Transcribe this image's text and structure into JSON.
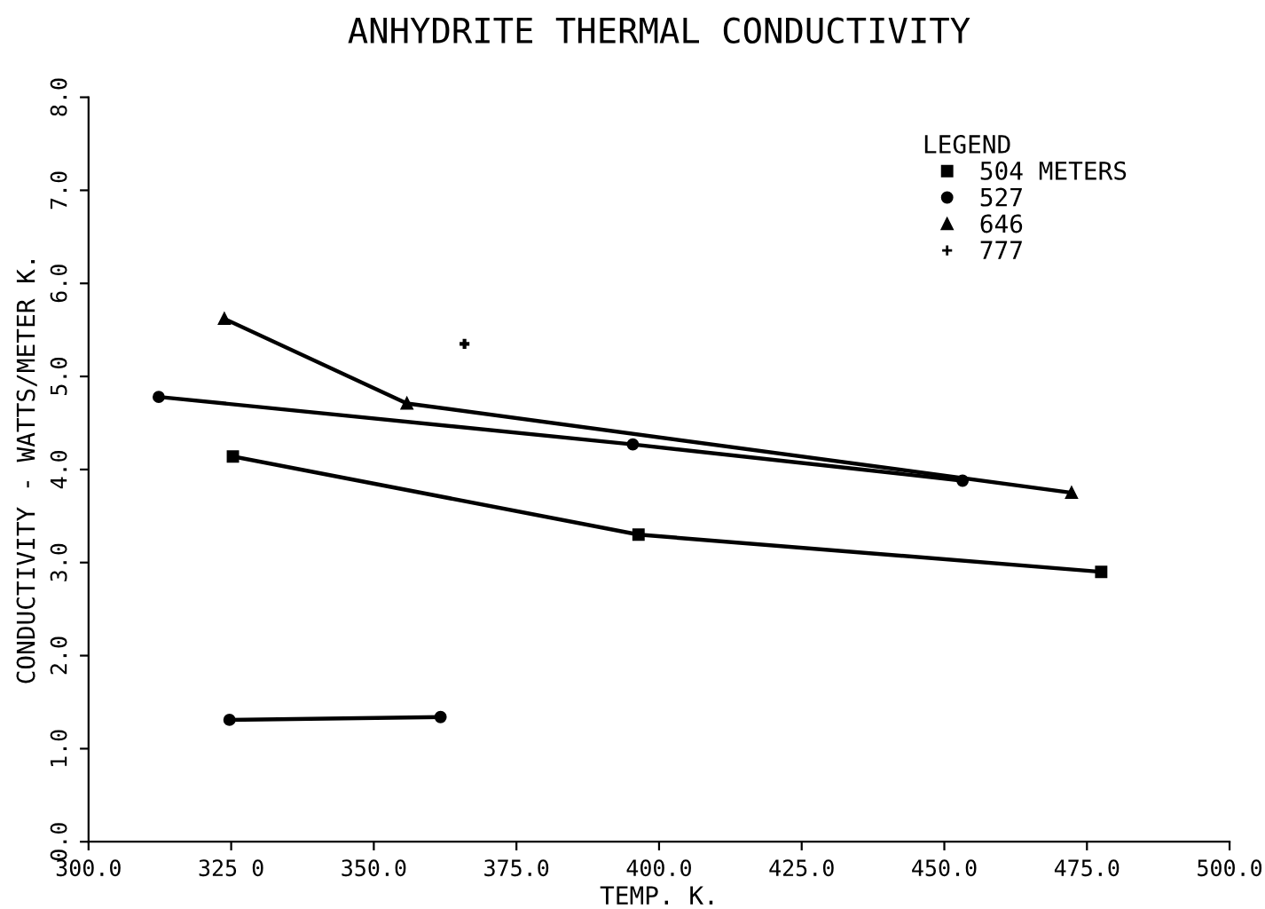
{
  "chart_data": {
    "type": "line",
    "title": "ANHYDRITE THERMAL CONDUCTIVITY",
    "xlabel": "TEMP. K.",
    "ylabel": "CONDUCTIVITY - WATTS/METER K.",
    "legend_title": "LEGEND",
    "legend": "top right",
    "grid": false,
    "xlim": [
      300,
      500
    ],
    "xticks": [
      {
        "value": 300,
        "label": "300.0"
      },
      {
        "value": 325,
        "label": "325 0"
      },
      {
        "value": 350,
        "label": "350.0"
      },
      {
        "value": 375,
        "label": "375.0"
      },
      {
        "value": 400,
        "label": "400.0"
      },
      {
        "value": 425,
        "label": "425.0"
      },
      {
        "value": 450,
        "label": "450.0"
      },
      {
        "value": 475,
        "label": "475.0"
      },
      {
        "value": 500,
        "label": "500.0"
      }
    ],
    "ylim": [
      0,
      8
    ],
    "yticks": [
      {
        "value": 0,
        "label": "0.0"
      },
      {
        "value": 1,
        "label": "1.0"
      },
      {
        "value": 2,
        "label": "2.0"
      },
      {
        "value": 3,
        "label": "3.0"
      },
      {
        "value": 4,
        "label": "4.0"
      },
      {
        "value": 5,
        "label": "5.0"
      },
      {
        "value": 6,
        "label": "6.0"
      },
      {
        "value": 7,
        "label": "7.0"
      },
      {
        "value": 8,
        "label": "8.0"
      }
    ],
    "series": [
      {
        "name": "504 METERS",
        "color": "#000000",
        "marker": "square",
        "x": [
          325.3,
          396.4,
          477.5
        ],
        "values": [
          4.14,
          3.3,
          2.9
        ]
      },
      {
        "name": "527",
        "color": "#000000",
        "marker": "circle",
        "x": [
          312.3,
          395.4,
          453.2
        ],
        "values": [
          4.78,
          4.27,
          3.88
        ]
      },
      {
        "name": "646",
        "color": "#000000",
        "marker": "triangle",
        "x": [
          323.8,
          355.8,
          472.3
        ],
        "values": [
          5.62,
          4.71,
          3.75
        ]
      },
      {
        "name": "777",
        "color": "#000000",
        "marker": "cross",
        "type": "scatter",
        "x": [
          365.9
        ],
        "values": [
          5.35
        ]
      },
      {
        "color": "#000000",
        "marker": "circle",
        "x": [
          324.7,
          361.7
        ],
        "values": [
          1.31,
          1.34
        ]
      }
    ]
  }
}
